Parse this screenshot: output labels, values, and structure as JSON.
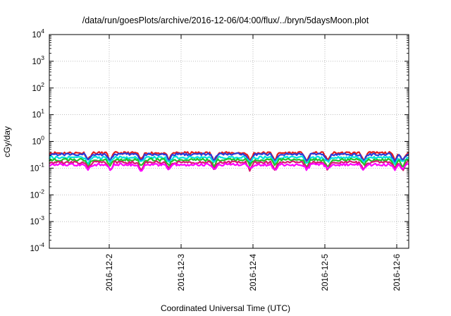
{
  "chart_data": {
    "type": "line",
    "title": "/data/run/goesPlots/archive/2016-12-06/04:00/flux/../bryn/5daysMoon.plot",
    "xlabel": "Coordinated Universal Time (UTC)",
    "ylabel": "cGy/day",
    "y_scale": "log",
    "ylim": [
      0.0001,
      10000
    ],
    "y_ticks": [
      {
        "base": "10",
        "exp": "-4"
      },
      {
        "base": "10",
        "exp": "-3"
      },
      {
        "base": "10",
        "exp": "-2"
      },
      {
        "base": "10",
        "exp": "-1"
      },
      {
        "base": "10",
        "exp": "0"
      },
      {
        "base": "10",
        "exp": "1"
      },
      {
        "base": "10",
        "exp": "2"
      },
      {
        "base": "10",
        "exp": "3"
      },
      {
        "base": "10",
        "exp": "4"
      }
    ],
    "xlim": [
      "2016-12-01T04:00",
      "2016-12-06T04:00"
    ],
    "x_ticks": [
      "2016-12-2",
      "2016-12-3",
      "2016-12-4",
      "2016-12-5",
      "2016-12-6"
    ],
    "grid": true,
    "legend": "none",
    "series": [
      {
        "color": "#e41a1c",
        "base": 0.37,
        "dip": 0.6
      },
      {
        "color": "#2b3bd8",
        "base": 0.33,
        "dip": 0.55
      },
      {
        "color": "#00e0e0",
        "base": 0.25,
        "dip": 0.45
      },
      {
        "color": "#22c22a",
        "base": 0.205,
        "dip": 0.5
      },
      {
        "color": "#d61b6e",
        "base": 0.165,
        "dip": 0.55
      },
      {
        "color": "#ff00ff",
        "base": 0.135,
        "dip": 0.42
      }
    ],
    "dip_times": [
      "2016-12-01T17:00",
      "2016-12-02T00:20",
      "2016-12-02T10:40",
      "2016-12-02T20:00",
      "2016-12-03T11:00",
      "2016-12-03T23:00",
      "2016-12-04T07:20",
      "2016-12-04T18:00",
      "2016-12-05T01:00",
      "2016-12-05T13:00",
      "2016-12-05T23:20",
      "2016-12-06T02:00"
    ]
  }
}
